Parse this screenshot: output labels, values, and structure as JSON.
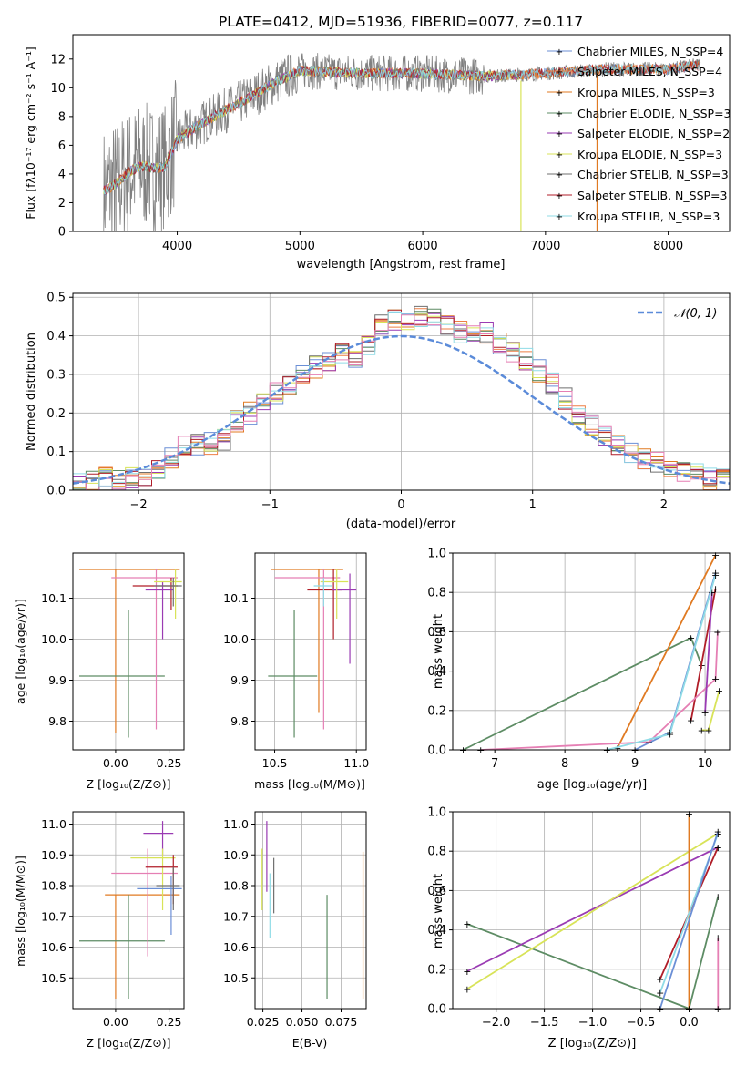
{
  "colors": {
    "chabrier_miles": "#6b8fd6",
    "salpeter_miles": "#ee7f45",
    "kroupa_miles": "#e07a22",
    "chabrier_elodie": "#5d8c64",
    "salpeter_elodie": "#9a3bb3",
    "kroupa_elodie": "#d8e358",
    "chabrier_stelib": "#6f6f6f",
    "salpeter_stelib": "#b01d28",
    "kroupa_stelib": "#8fdbe6",
    "pink": "#e57fb4",
    "normal_curve": "#5b8bd9"
  },
  "chart_data": [
    {
      "id": "spectrum",
      "type": "line",
      "title": "PLATE=0412, MJD=51936, FIBERID=0077, z=0.117",
      "xlabel": "wavelength [Angstrom, rest frame]",
      "ylabel": "Flux [fλ10⁻¹⁷ erg cm⁻² s⁻¹ A⁻¹]",
      "xlim": [
        3150,
        8500
      ],
      "ylim": [
        0,
        13.7
      ],
      "xticks": [
        4000,
        5000,
        6000,
        7000,
        8000
      ],
      "yticks": [
        0,
        2,
        4,
        6,
        8,
        10,
        12
      ],
      "grid": false,
      "legend_position": "right",
      "legend": [
        "Chabrier MILES, N_SSP=4",
        "Salpeter MILES, N_SSP=4",
        "Kroupa MILES, N_SSP=3",
        "Chabrier ELODIE, N_SSP=3",
        "Salpeter ELODIE, N_SSP=2",
        "Kroupa ELODIE, N_SSP=3",
        "Chabrier STELIB, N_SSP=3",
        "Salpeter STELIB, N_SSP=3",
        "Kroupa STELIB, N_SSP=3"
      ],
      "continuum": {
        "x": [
          3400,
          3500,
          3600,
          3700,
          3800,
          3900,
          4000,
          4100,
          4300,
          4500,
          4800,
          5000,
          5500,
          6000,
          6500,
          7000,
          7500,
          8000,
          8250
        ],
        "y": [
          2.8,
          3.3,
          4.1,
          4.6,
          4.4,
          4.5,
          6.4,
          7.0,
          8.0,
          8.9,
          10.4,
          11.2,
          11.0,
          11.0,
          10.8,
          11.0,
          11.3,
          11.3,
          11.6
        ]
      }
    },
    {
      "id": "residuals",
      "type": "line",
      "xlabel": "(data-model)/error",
      "ylabel": "Normed distribution",
      "xlim": [
        -2.5,
        2.5
      ],
      "ylim": [
        0,
        0.51
      ],
      "xticks": [
        -2,
        -1,
        0,
        1,
        2
      ],
      "yticks": [
        0.0,
        0.1,
        0.2,
        0.3,
        0.4,
        0.5
      ],
      "grid": true,
      "legend_position": "top-right",
      "legend": [
        "𝒩(0, 1)"
      ],
      "bins": [
        -2.5,
        -2.4,
        -2.3,
        -2.2,
        -2.1,
        -2.0,
        -1.9,
        -1.8,
        -1.7,
        -1.6,
        -1.5,
        -1.4,
        -1.3,
        -1.2,
        -1.1,
        -1.0,
        -0.9,
        -0.8,
        -0.7,
        -0.6,
        -0.5,
        -0.4,
        -0.3,
        -0.2,
        -0.1,
        0.0,
        0.1,
        0.2,
        0.3,
        0.4,
        0.5,
        0.6,
        0.7,
        0.8,
        0.9,
        1.0,
        1.1,
        1.2,
        1.3,
        1.4,
        1.5,
        1.6,
        1.7,
        1.8,
        1.9,
        2.0,
        2.1,
        2.2,
        2.3,
        2.4,
        2.5
      ],
      "histogram_values": [
        0.02,
        0.02,
        0.03,
        0.03,
        0.03,
        0.04,
        0.05,
        0.08,
        0.11,
        0.12,
        0.12,
        0.13,
        0.18,
        0.2,
        0.23,
        0.25,
        0.27,
        0.3,
        0.32,
        0.33,
        0.36,
        0.34,
        0.38,
        0.43,
        0.44,
        0.43,
        0.45,
        0.44,
        0.43,
        0.41,
        0.4,
        0.41,
        0.38,
        0.36,
        0.34,
        0.31,
        0.28,
        0.24,
        0.2,
        0.17,
        0.14,
        0.12,
        0.1,
        0.08,
        0.07,
        0.06,
        0.05,
        0.04,
        0.03,
        0.03
      ]
    },
    {
      "id": "age_vs_Z",
      "type": "scatter",
      "xlabel": "Z [log₁₀(Z/Z⊙)]",
      "ylabel": "age  [log₁₀(age/yr)]",
      "xlim": [
        -0.2,
        0.32
      ],
      "ylim": [
        9.73,
        10.21
      ],
      "xticks": [
        "0.00",
        "0.25"
      ],
      "yticks": [
        "9.8",
        "9.9",
        "10.0",
        "10.1"
      ],
      "grid": true
    },
    {
      "id": "age_vs_mass",
      "type": "scatter",
      "xlabel": "mass [log₁₀(M/M⊙)]",
      "ylabel": "",
      "xlim": [
        10.38,
        11.06
      ],
      "ylim": [
        9.73,
        10.21
      ],
      "xticks": [
        "10.5",
        "11.0"
      ],
      "yticks": [
        "9.8",
        "9.9",
        "10.0",
        "10.1"
      ],
      "grid": true
    },
    {
      "id": "weight_vs_age",
      "type": "line",
      "xlabel": "age  [log₁₀(age/yr)]",
      "ylabel": "mass weight",
      "xlim": [
        6.4,
        10.35
      ],
      "ylim": [
        0,
        1
      ],
      "xticks": [
        "7",
        "8",
        "9",
        "10"
      ],
      "yticks": [
        "0.0",
        "0.2",
        "0.4",
        "0.6",
        "0.8",
        "1.0"
      ],
      "grid": true
    },
    {
      "id": "mass_vs_Z",
      "type": "scatter",
      "xlabel": "Z [log₁₀(Z/Z⊙)]",
      "ylabel": "mass [log₁₀(M/M⊙)]",
      "xlim": [
        -0.2,
        0.32
      ],
      "ylim": [
        10.4,
        11.04
      ],
      "xticks": [
        "0.00",
        "0.25"
      ],
      "yticks": [
        "10.5",
        "10.6",
        "10.7",
        "10.8",
        "10.9",
        "11.0"
      ],
      "grid": true
    },
    {
      "id": "mass_vs_ebv",
      "type": "scatter",
      "xlabel": "E(B-V)",
      "ylabel": "",
      "xlim": [
        0.02,
        0.091
      ],
      "ylim": [
        10.4,
        11.04
      ],
      "xticks": [
        "0.025",
        "0.050",
        "0.075"
      ],
      "yticks": [
        "10.5",
        "10.6",
        "10.7",
        "10.8",
        "10.9",
        "11.0"
      ],
      "grid": true
    },
    {
      "id": "weight_vs_Z",
      "type": "line",
      "xlabel": "Z [log₁₀(Z/Z⊙)]",
      "ylabel": "mass weight",
      "xlim": [
        -2.45,
        0.42
      ],
      "ylim": [
        0,
        1
      ],
      "xticks": [
        "−2.0",
        "−1.5",
        "−1.0",
        "−0.5",
        "0.0"
      ],
      "yticks": [
        "0.0",
        "0.2",
        "0.4",
        "0.6",
        "0.8",
        "1.0"
      ],
      "grid": true
    }
  ]
}
